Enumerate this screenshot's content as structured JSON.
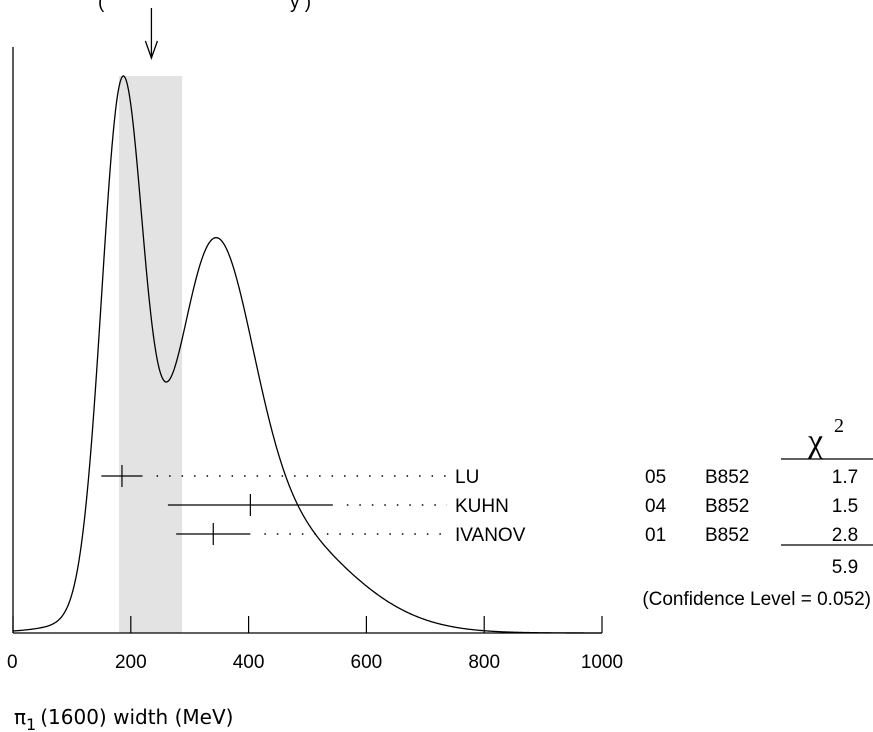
{
  "chart_data": {
    "type": "ideogram",
    "header_partial": "(",
    "header_partial_right": "y   )",
    "average_marker_value": 235,
    "band_range": [
      180,
      287
    ],
    "x_axis": {
      "min": 0,
      "max": 1000,
      "ticks": [
        0,
        200,
        400,
        600,
        800,
        1000
      ],
      "tick_labels": [
        "0",
        "200",
        "400",
        "600",
        "800",
        "1000"
      ],
      "label_main": "π",
      "label_sub": "1",
      "label_rest": "(1600) width (MeV)"
    },
    "measurements": [
      {
        "author": "LU",
        "year": "05",
        "experiment": "B852",
        "value": 185,
        "error": 35,
        "chi2": "1.7"
      },
      {
        "author": "KUHN",
        "year": "04",
        "experiment": "B852",
        "value": 403,
        "error": 140,
        "chi2": "1.5"
      },
      {
        "author": "IVANOV",
        "year": "01",
        "experiment": "B852",
        "value": 340,
        "error": 63,
        "chi2": "2.8"
      }
    ],
    "chi2_header": "χ",
    "chi2_header_sup": "2",
    "chi2_total": "5.9",
    "confidence_level": "(Confidence Level = 0.052)"
  }
}
